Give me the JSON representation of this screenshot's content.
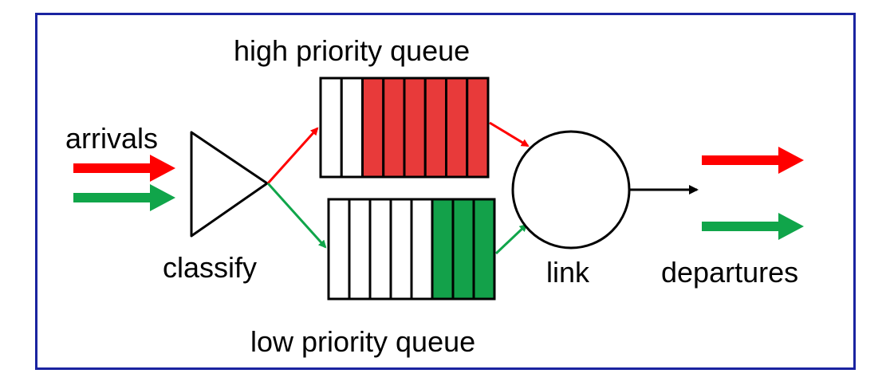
{
  "labels": {
    "high_queue": "high priority queue",
    "low_queue": "low priority queue",
    "arrivals": "arrivals",
    "classify": "classify",
    "link": "link",
    "departures": "departures"
  },
  "colors": {
    "frame": "#1a23a0",
    "high_priority": "#e83a3a",
    "low_priority": "#13a14a",
    "arrow_red": "#ff0000",
    "arrow_green": "#10a54a",
    "outline": "#000000"
  },
  "queues": {
    "high": {
      "slots": 8,
      "filled": 6
    },
    "low": {
      "slots": 8,
      "filled": 3
    }
  }
}
